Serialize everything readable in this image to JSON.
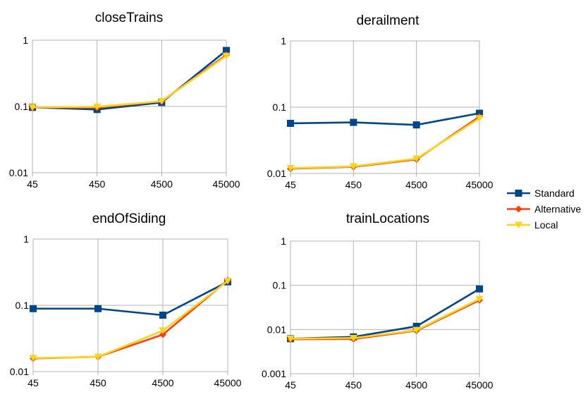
{
  "chart_data": [
    {
      "type": "line",
      "title": "closeTrains",
      "y_scale": "log",
      "ylim": [
        0.01,
        1
      ],
      "y_ticks": [
        "0.01",
        "0.1",
        "1"
      ],
      "categories": [
        "45",
        "450",
        "4500",
        "45000"
      ],
      "series": [
        {
          "name": "Standard",
          "values": [
            0.097,
            0.09,
            0.115,
            0.7
          ]
        },
        {
          "name": "Alternative",
          "values": [
            0.097,
            0.096,
            0.12,
            0.6
          ]
        },
        {
          "name": "Local",
          "values": [
            0.097,
            0.099,
            0.12,
            0.58
          ]
        }
      ]
    },
    {
      "type": "line",
      "title": "derailment",
      "y_scale": "log",
      "ylim": [
        0.01,
        1
      ],
      "y_ticks": [
        "0.01",
        "0.1",
        "1"
      ],
      "categories": [
        "45",
        "450",
        "4500",
        "45000"
      ],
      "series": [
        {
          "name": "Standard",
          "values": [
            0.057,
            0.059,
            0.054,
            0.081
          ]
        },
        {
          "name": "Alternative",
          "values": [
            0.0118,
            0.0126,
            0.0163,
            0.072
          ]
        },
        {
          "name": "Local",
          "values": [
            0.012,
            0.0128,
            0.0167,
            0.068
          ]
        }
      ]
    },
    {
      "type": "line",
      "title": "endOfSiding",
      "y_scale": "log",
      "ylim": [
        0.01,
        1
      ],
      "y_ticks": [
        "0.01",
        "0.1",
        "1"
      ],
      "categories": [
        "45",
        "450",
        "4500",
        "45000"
      ],
      "series": [
        {
          "name": "Standard",
          "values": [
            0.089,
            0.089,
            0.071,
            0.226
          ]
        },
        {
          "name": "Alternative",
          "values": [
            0.0158,
            0.0167,
            0.0362,
            0.238
          ]
        },
        {
          "name": "Local",
          "values": [
            0.016,
            0.0167,
            0.0415,
            0.232
          ]
        }
      ]
    },
    {
      "type": "line",
      "title": "trainLocations",
      "y_scale": "log",
      "ylim": [
        0.001,
        1
      ],
      "y_ticks": [
        "0.001",
        "0.01",
        "0.1",
        "1"
      ],
      "categories": [
        "45",
        "450",
        "4500",
        "45000"
      ],
      "series": [
        {
          "name": "Standard",
          "values": [
            0.0062,
            0.0068,
            0.0118,
            0.083
          ]
        },
        {
          "name": "Alternative",
          "values": [
            0.006,
            0.0061,
            0.0094,
            0.046
          ]
        },
        {
          "name": "Local",
          "values": [
            0.0062,
            0.0064,
            0.0097,
            0.049
          ]
        }
      ]
    }
  ],
  "legend": {
    "placement": "right",
    "items": [
      {
        "label": "Standard",
        "color": "#004586",
        "marker": "square"
      },
      {
        "label": "Alternative",
        "color": "#ff420e",
        "marker": "diamond"
      },
      {
        "label": "Local",
        "color": "#ffd320",
        "marker": "triangle-down"
      }
    ]
  },
  "colors": {
    "Standard": "#004586",
    "Alternative": "#ff420e",
    "Local": "#ffd320",
    "axis": "#b3b3b3",
    "grid": "#b3b3b3"
  }
}
